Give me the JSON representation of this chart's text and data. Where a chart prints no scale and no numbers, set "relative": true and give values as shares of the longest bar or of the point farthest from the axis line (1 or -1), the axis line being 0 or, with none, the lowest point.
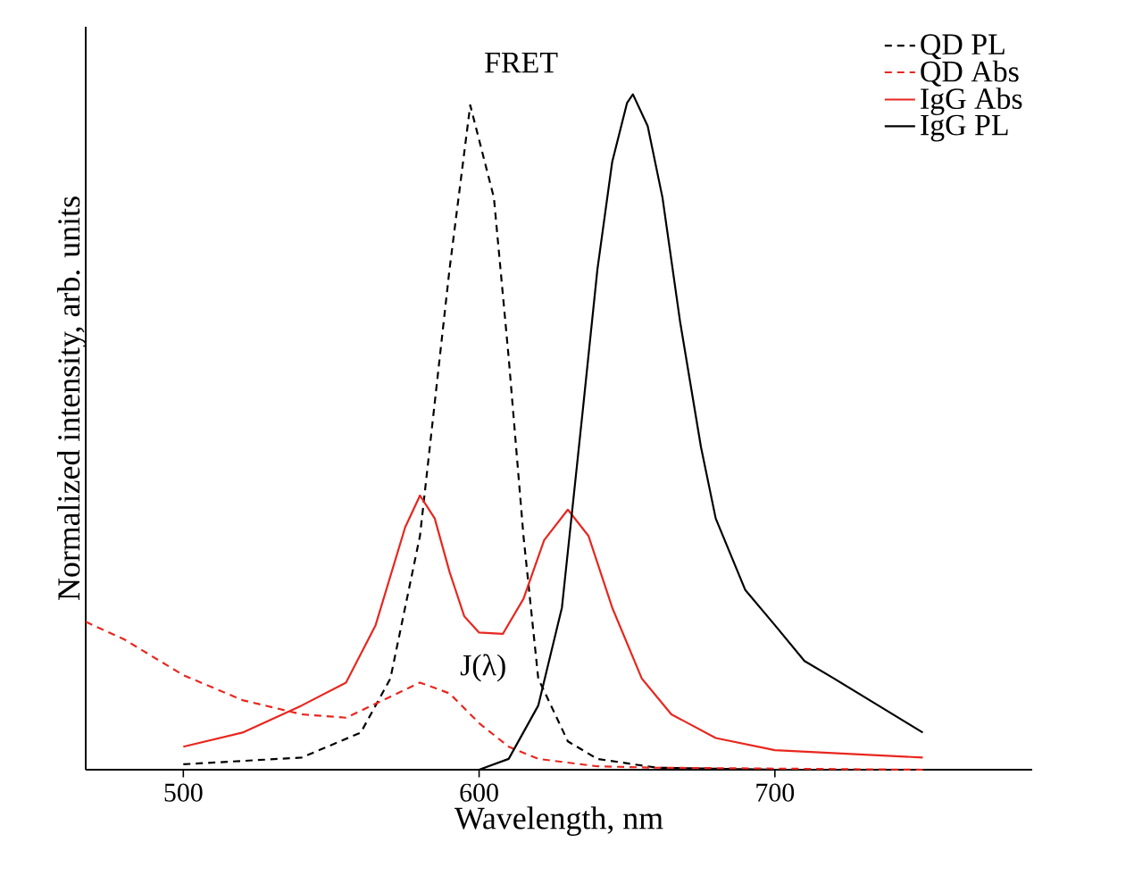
{
  "chart_data": {
    "type": "line",
    "relative": true,
    "xlabel": "Wavelength, nm",
    "ylabel": "Normalized intensity, arb. units",
    "xlim": [
      467,
      787
    ],
    "xticks": [
      500,
      600,
      700
    ],
    "legend": "top right",
    "tick_labels": "x",
    "annotations": [
      "FRET",
      "J(λ)"
    ],
    "series": [
      {
        "name": "QD PL",
        "color": "#000000",
        "line_style": "dashed",
        "x": [
          500,
          540,
          560,
          570,
          580,
          590,
          597,
          605,
          610,
          615,
          620,
          630,
          640,
          660,
          700
        ],
        "values": [
          0.008,
          0.018,
          0.055,
          0.135,
          0.346,
          0.741,
          0.984,
          0.847,
          0.61,
          0.346,
          0.135,
          0.042,
          0.016,
          0.003,
          0
        ]
      },
      {
        "name": "QD Abs",
        "color": "#e8261e",
        "line_style": "dashed",
        "x": [
          467,
          480,
          500,
          520,
          540,
          555,
          570,
          580,
          590,
          600,
          610,
          620,
          640,
          660,
          750
        ],
        "values": [
          0.219,
          0.193,
          0.14,
          0.103,
          0.082,
          0.077,
          0.108,
          0.129,
          0.113,
          0.069,
          0.034,
          0.016,
          0.005,
          0.003,
          0
        ]
      },
      {
        "name": "IgG Abs",
        "color": "#e8261e",
        "line_style": "solid",
        "x": [
          500,
          520,
          540,
          555,
          565,
          575,
          580,
          585,
          590,
          595,
          600,
          608,
          615,
          622,
          630,
          637,
          645,
          655,
          665,
          680,
          700,
          750
        ],
        "values": [
          0.034,
          0.055,
          0.095,
          0.129,
          0.214,
          0.359,
          0.406,
          0.372,
          0.293,
          0.227,
          0.203,
          0.201,
          0.253,
          0.34,
          0.385,
          0.346,
          0.24,
          0.135,
          0.082,
          0.047,
          0.029,
          0.018
        ]
      },
      {
        "name": "IgG PL",
        "color": "#000000",
        "line_style": "solid",
        "x": [
          600,
          610,
          620,
          628,
          635,
          640,
          645,
          650,
          652,
          657,
          662,
          668,
          675,
          680,
          690,
          700,
          710,
          720,
          735,
          750
        ],
        "values": [
          0,
          0.016,
          0.095,
          0.24,
          0.53,
          0.741,
          0.9,
          0.987,
          1,
          0.953,
          0.847,
          0.662,
          0.478,
          0.372,
          0.266,
          0.214,
          0.161,
          0.135,
          0.095,
          0.055
        ]
      }
    ]
  }
}
